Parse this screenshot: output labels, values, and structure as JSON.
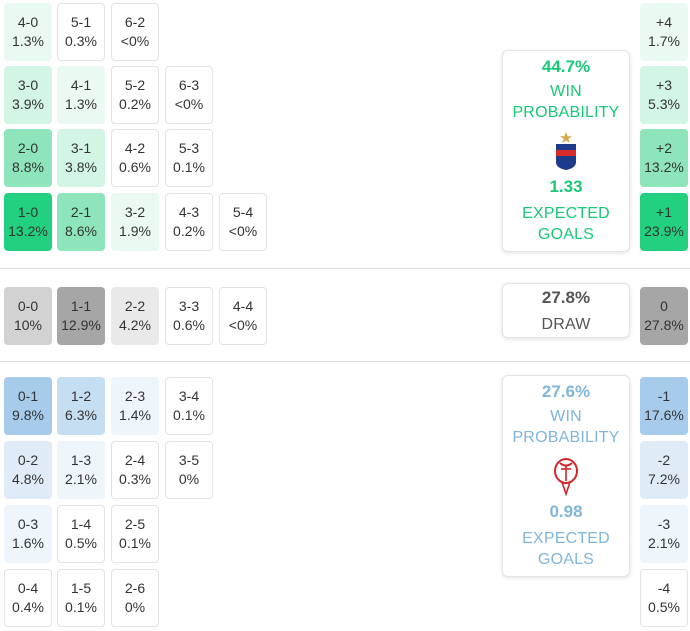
{
  "home": {
    "scores": [
      {
        "score": "4-0",
        "pct": "1.3%",
        "level": 1
      },
      {
        "score": "5-1",
        "pct": "0.3%",
        "level": 0
      },
      {
        "score": "6-2",
        "pct": "<0%",
        "level": 0
      },
      {
        "score": "3-0",
        "pct": "3.9%",
        "level": 2
      },
      {
        "score": "4-1",
        "pct": "1.3%",
        "level": 1
      },
      {
        "score": "5-2",
        "pct": "0.2%",
        "level": 0
      },
      {
        "score": "6-3",
        "pct": "<0%",
        "level": 0
      },
      {
        "score": "2-0",
        "pct": "8.8%",
        "level": 3
      },
      {
        "score": "3-1",
        "pct": "3.8%",
        "level": 2
      },
      {
        "score": "4-2",
        "pct": "0.6%",
        "level": 0
      },
      {
        "score": "5-3",
        "pct": "0.1%",
        "level": 0
      },
      {
        "score": "1-0",
        "pct": "13.2%",
        "level": 4
      },
      {
        "score": "2-1",
        "pct": "8.6%",
        "level": 3
      },
      {
        "score": "3-2",
        "pct": "1.9%",
        "level": 1
      },
      {
        "score": "4-3",
        "pct": "0.2%",
        "level": 0
      },
      {
        "score": "5-4",
        "pct": "<0%",
        "level": 0
      }
    ],
    "card": {
      "probability": "44.7%",
      "win_label_1": "WIN",
      "win_label_2": "PROBABILITY",
      "expected_goals": "1.33",
      "xg_label_1": "EXPECTED",
      "xg_label_2": "GOALS",
      "badge_icon": "tigre-crest-icon",
      "color": "#19c877"
    },
    "margins": [
      {
        "margin": "+4",
        "pct": "1.7%",
        "level": 1
      },
      {
        "margin": "+3",
        "pct": "5.3%",
        "level": 2
      },
      {
        "margin": "+2",
        "pct": "13.2%",
        "level": 3
      },
      {
        "margin": "+1",
        "pct": "23.9%",
        "level": 4
      }
    ]
  },
  "draw": {
    "scores": [
      {
        "score": "0-0",
        "pct": "10%",
        "level": 2
      },
      {
        "score": "1-1",
        "pct": "12.9%",
        "level": 3
      },
      {
        "score": "2-2",
        "pct": "4.2%",
        "level": 1
      },
      {
        "score": "3-3",
        "pct": "0.6%",
        "level": 0
      },
      {
        "score": "4-4",
        "pct": "<0%",
        "level": 0
      }
    ],
    "card": {
      "probability": "27.8%",
      "label": "DRAW"
    },
    "margin": {
      "margin": "0",
      "pct": "27.8%",
      "level": 3
    }
  },
  "away": {
    "scores": [
      {
        "score": "0-1",
        "pct": "9.8%",
        "level": 4
      },
      {
        "score": "1-2",
        "pct": "6.3%",
        "level": 3
      },
      {
        "score": "2-3",
        "pct": "1.4%",
        "level": 1
      },
      {
        "score": "3-4",
        "pct": "0.1%",
        "level": 0
      },
      {
        "score": "0-2",
        "pct": "4.8%",
        "level": 2
      },
      {
        "score": "1-3",
        "pct": "2.1%",
        "level": 1
      },
      {
        "score": "2-4",
        "pct": "0.3%",
        "level": 0
      },
      {
        "score": "3-5",
        "pct": "0%",
        "level": 0
      },
      {
        "score": "0-3",
        "pct": "1.6%",
        "level": 1
      },
      {
        "score": "1-4",
        "pct": "0.5%",
        "level": 0
      },
      {
        "score": "2-5",
        "pct": "0.1%",
        "level": 0
      },
      {
        "score": "0-4",
        "pct": "0.4%",
        "level": 0
      },
      {
        "score": "1-5",
        "pct": "0.1%",
        "level": 0
      },
      {
        "score": "2-6",
        "pct": "0%",
        "level": 0
      }
    ],
    "card": {
      "probability": "27.6%",
      "win_label_1": "WIN",
      "win_label_2": "PROBABILITY",
      "expected_goals": "0.98",
      "xg_label_1": "EXPECTED",
      "xg_label_2": "GOALS",
      "badge_icon": "huracan-crest-icon",
      "color": "#7fb6da"
    },
    "margins": [
      {
        "margin": "-1",
        "pct": "17.6%",
        "level": 4
      },
      {
        "margin": "-2",
        "pct": "7.2%",
        "level": 2
      },
      {
        "margin": "-3",
        "pct": "2.1%",
        "level": 1
      },
      {
        "margin": "-4",
        "pct": "0.5%",
        "level": 0
      }
    ]
  },
  "palette": {
    "home": [
      "#ffffff",
      "#eafaf2",
      "#d3f5e4",
      "#8ee5bb",
      "#22d07f"
    ],
    "draw": [
      "#ffffff",
      "#e9e9e9",
      "#d2d2d2",
      "#a6a6a6"
    ],
    "away": [
      "#ffffff",
      "#eef5fb",
      "#dfecf7",
      "#c6def2",
      "#a7cceb"
    ]
  }
}
